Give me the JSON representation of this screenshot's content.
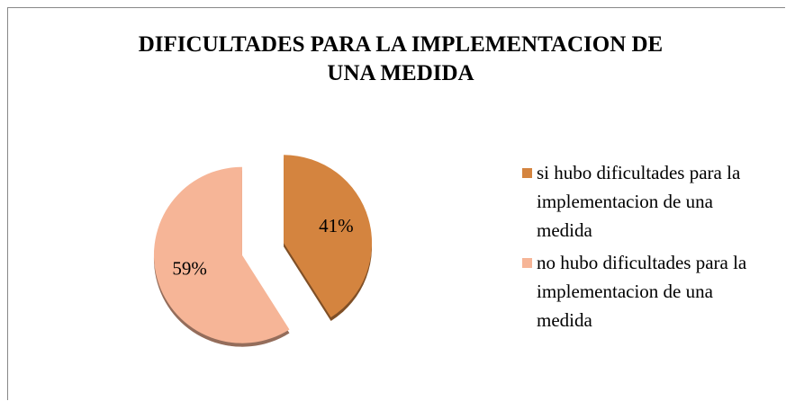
{
  "chart_data": {
    "type": "pie",
    "title": "DIFICULTADES PARA LA IMPLEMENTACION DE UNA MEDIDA",
    "categories": [
      "si hubo dificultades para la implementacion de una medida",
      "no hubo dificultades para la implementacion de una medida"
    ],
    "values": [
      41,
      59
    ],
    "value_labels": [
      "41%",
      "59%"
    ],
    "colors": [
      "#d4843f",
      "#f6b597"
    ],
    "exploded": true,
    "legend": "right"
  }
}
